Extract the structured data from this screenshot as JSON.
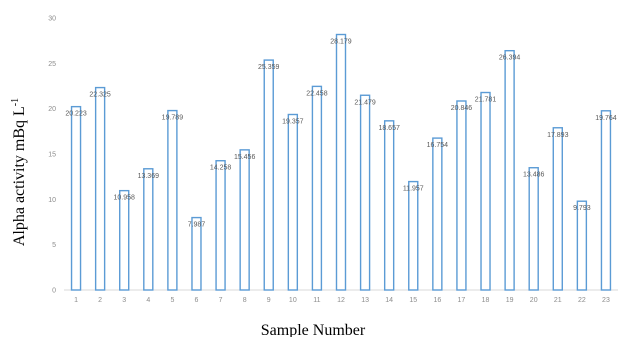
{
  "chart_data": {
    "type": "bar",
    "categories": [
      "1",
      "2",
      "3",
      "4",
      "5",
      "6",
      "7",
      "8",
      "9",
      "10",
      "11",
      "12",
      "13",
      "14",
      "15",
      "16",
      "17",
      "18",
      "19",
      "20",
      "21",
      "22",
      "23"
    ],
    "values": [
      20.223,
      22.325,
      10.958,
      13.369,
      19.789,
      7.987,
      14.258,
      15.456,
      25.359,
      19.357,
      22.458,
      28.179,
      21.479,
      18.657,
      11.957,
      16.754,
      20.846,
      21.781,
      26.394,
      13.486,
      17.893,
      9.793,
      19.764
    ],
    "value_labels": [
      "20.223",
      "22.325",
      "10.958",
      "13.369",
      "19.789",
      "7.987",
      "14.258",
      "15.456",
      "25.359",
      "19.357",
      "22.458",
      "28.179",
      "21.479",
      "18.657",
      "11.957",
      "16.754",
      "20.846",
      "21.781",
      "26.394",
      "13.486",
      "17.893",
      "9.793",
      "19.764"
    ],
    "ylim": [
      0,
      30
    ],
    "yticks": [
      "0",
      "5",
      "10",
      "15",
      "20",
      "25",
      "30"
    ],
    "xlabel": "Sample Number",
    "ylabel_main": "Alpha activity mBq L",
    "ylabel_sup": "-1",
    "title": "",
    "legend": "none",
    "grid": false,
    "colors": {
      "bar_stroke": "#5b9bd5",
      "bar_fill": "#ffffff",
      "axis": "#d9d9d9"
    }
  }
}
